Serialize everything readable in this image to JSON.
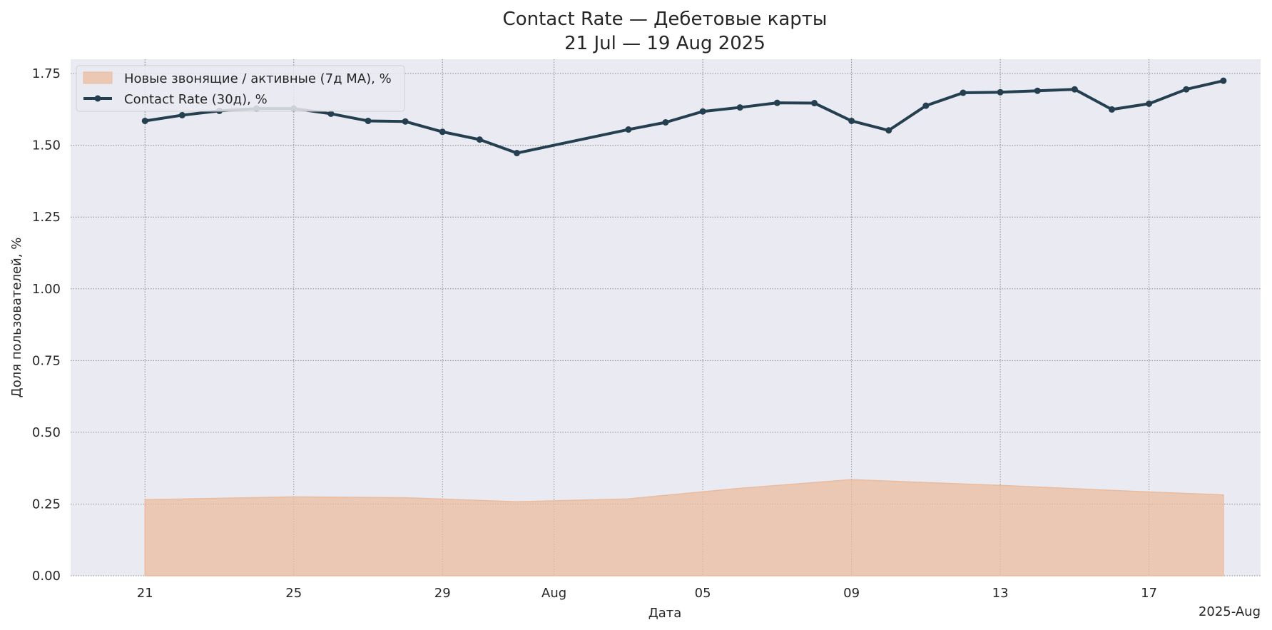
{
  "chart_data": {
    "type": "line",
    "title": "Contact Rate — Дебетовые карты",
    "subtitle": "21 Jul — 19 Aug 2025",
    "xlabel": "Дата",
    "ylabel": "Доля пользователей, %",
    "x_offset_label": "2025-Aug",
    "ylim": [
      0,
      1.8
    ],
    "xlim": [
      "2025-07-19",
      "2025-08-20"
    ],
    "grid": true,
    "grid_style": "dotted",
    "legend_position": "top-left",
    "background_color": "#EAEAF2",
    "y_ticks": [
      {
        "value": 0,
        "label": "0.00"
      },
      {
        "value": 0.25,
        "label": "0.25"
      },
      {
        "value": 0.5,
        "label": "0.50"
      },
      {
        "value": 0.75,
        "label": "0.75"
      },
      {
        "value": 1.0,
        "label": "1.00"
      },
      {
        "value": 1.25,
        "label": "1.25"
      },
      {
        "value": 1.5,
        "label": "1.50"
      },
      {
        "value": 1.75,
        "label": "1.75"
      }
    ],
    "x_ticks": [
      {
        "date": "2025-07-21",
        "label": "21"
      },
      {
        "date": "2025-07-25",
        "label": "25"
      },
      {
        "date": "2025-07-29",
        "label": "29"
      },
      {
        "date": "2025-08-01",
        "label": "Aug"
      },
      {
        "date": "2025-08-05",
        "label": "05"
      },
      {
        "date": "2025-08-09",
        "label": "09"
      },
      {
        "date": "2025-08-13",
        "label": "13"
      },
      {
        "date": "2025-08-17",
        "label": "17"
      }
    ],
    "series": [
      {
        "name": "Новые звонящие / активные (7д MA), %",
        "kind": "area",
        "color": "#E9BC9F",
        "points": [
          {
            "x": "2025-07-21",
            "y": 0.265
          },
          {
            "x": "2025-07-25",
            "y": 0.275
          },
          {
            "x": "2025-07-28",
            "y": 0.272
          },
          {
            "x": "2025-07-31",
            "y": 0.258
          },
          {
            "x": "2025-08-03",
            "y": 0.268
          },
          {
            "x": "2025-08-06",
            "y": 0.305
          },
          {
            "x": "2025-08-09",
            "y": 0.335
          },
          {
            "x": "2025-08-13",
            "y": 0.315
          },
          {
            "x": "2025-08-17",
            "y": 0.292
          },
          {
            "x": "2025-08-19",
            "y": 0.282
          }
        ]
      },
      {
        "name": "Contact Rate (30д), %",
        "kind": "line",
        "color": "#243F4F",
        "points": [
          {
            "x": "2025-07-21",
            "y": 1.585
          },
          {
            "x": "2025-07-22",
            "y": 1.605
          },
          {
            "x": "2025-07-23",
            "y": 1.62
          },
          {
            "x": "2025-07-24",
            "y": 1.628
          },
          {
            "x": "2025-07-25",
            "y": 1.628
          },
          {
            "x": "2025-07-26",
            "y": 1.61
          },
          {
            "x": "2025-07-27",
            "y": 1.585
          },
          {
            "x": "2025-07-28",
            "y": 1.583
          },
          {
            "x": "2025-07-29",
            "y": 1.547
          },
          {
            "x": "2025-07-30",
            "y": 1.52
          },
          {
            "x": "2025-07-31",
            "y": 1.473
          },
          {
            "x": "2025-08-03",
            "y": 1.555
          },
          {
            "x": "2025-08-04",
            "y": 1.58
          },
          {
            "x": "2025-08-05",
            "y": 1.618
          },
          {
            "x": "2025-08-06",
            "y": 1.632
          },
          {
            "x": "2025-08-07",
            "y": 1.648
          },
          {
            "x": "2025-08-08",
            "y": 1.647
          },
          {
            "x": "2025-08-09",
            "y": 1.585
          },
          {
            "x": "2025-08-10",
            "y": 1.552
          },
          {
            "x": "2025-08-11",
            "y": 1.638
          },
          {
            "x": "2025-08-12",
            "y": 1.683
          },
          {
            "x": "2025-08-13",
            "y": 1.685
          },
          {
            "x": "2025-08-14",
            "y": 1.69
          },
          {
            "x": "2025-08-15",
            "y": 1.695
          },
          {
            "x": "2025-08-16",
            "y": 1.625
          },
          {
            "x": "2025-08-17",
            "y": 1.645
          },
          {
            "x": "2025-08-18",
            "y": 1.695
          },
          {
            "x": "2025-08-19",
            "y": 1.725
          }
        ]
      }
    ]
  }
}
